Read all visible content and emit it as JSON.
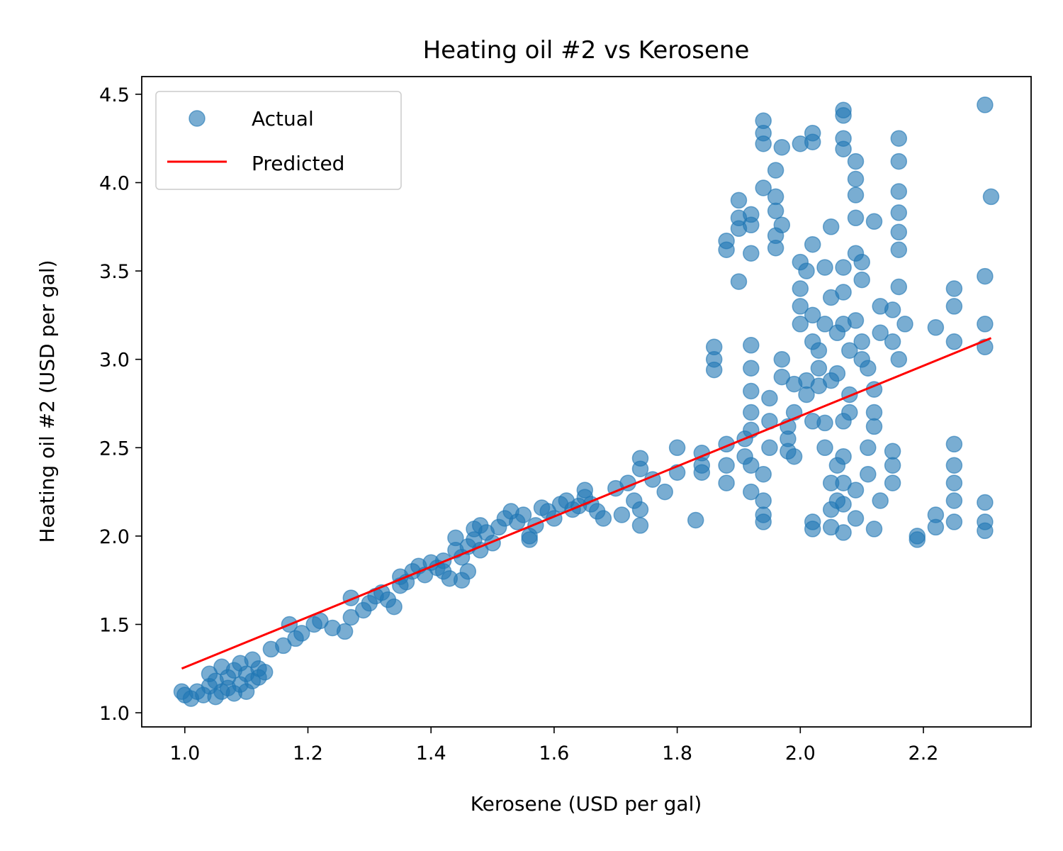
{
  "chart_data": {
    "type": "scatter",
    "title": "Heating oil #2 vs Kerosene",
    "xlabel": "Kerosene (USD per gal)",
    "ylabel": "Heating oil #2 (USD per gal)",
    "xlim": [
      0.93,
      2.375
    ],
    "ylim": [
      0.92,
      4.6
    ],
    "xticks": [
      1.0,
      1.2,
      1.4,
      1.6,
      1.8,
      2.0,
      2.2
    ],
    "xtick_labels": [
      "1.0",
      "1.2",
      "1.4",
      "1.6",
      "1.8",
      "2.0",
      "2.2"
    ],
    "yticks": [
      1.0,
      1.5,
      2.0,
      2.5,
      3.0,
      3.5,
      4.0,
      4.5
    ],
    "ytick_labels": [
      "1.0",
      "1.5",
      "2.0",
      "2.5",
      "3.0",
      "3.5",
      "4.0",
      "4.5"
    ],
    "grid": false,
    "legend_position": "top-left",
    "colors": {
      "actual": "#1f77b4",
      "predicted": "#ff0000"
    },
    "series": [
      {
        "name": "Actual",
        "kind": "scatter",
        "points": [
          [
            0.995,
            1.12
          ],
          [
            1.0,
            1.1
          ],
          [
            1.01,
            1.08
          ],
          [
            1.02,
            1.12
          ],
          [
            1.03,
            1.1
          ],
          [
            1.04,
            1.15
          ],
          [
            1.04,
            1.22
          ],
          [
            1.05,
            1.09
          ],
          [
            1.05,
            1.18
          ],
          [
            1.06,
            1.26
          ],
          [
            1.06,
            1.12
          ],
          [
            1.07,
            1.2
          ],
          [
            1.07,
            1.14
          ],
          [
            1.08,
            1.24
          ],
          [
            1.08,
            1.11
          ],
          [
            1.09,
            1.28
          ],
          [
            1.09,
            1.16
          ],
          [
            1.1,
            1.22
          ],
          [
            1.1,
            1.12
          ],
          [
            1.11,
            1.3
          ],
          [
            1.11,
            1.18
          ],
          [
            1.12,
            1.25
          ],
          [
            1.12,
            1.2
          ],
          [
            1.13,
            1.23
          ],
          [
            1.14,
            1.36
          ],
          [
            1.16,
            1.38
          ],
          [
            1.17,
            1.5
          ],
          [
            1.18,
            1.42
          ],
          [
            1.19,
            1.45
          ],
          [
            1.21,
            1.5
          ],
          [
            1.22,
            1.52
          ],
          [
            1.24,
            1.48
          ],
          [
            1.26,
            1.46
          ],
          [
            1.27,
            1.54
          ],
          [
            1.27,
            1.65
          ],
          [
            1.29,
            1.58
          ],
          [
            1.3,
            1.62
          ],
          [
            1.31,
            1.66
          ],
          [
            1.32,
            1.68
          ],
          [
            1.33,
            1.64
          ],
          [
            1.34,
            1.6
          ],
          [
            1.35,
            1.72
          ],
          [
            1.35,
            1.77
          ],
          [
            1.36,
            1.74
          ],
          [
            1.37,
            1.8
          ],
          [
            1.38,
            1.83
          ],
          [
            1.39,
            1.78
          ],
          [
            1.4,
            1.85
          ],
          [
            1.41,
            1.82
          ],
          [
            1.42,
            1.86
          ],
          [
            1.42,
            1.8
          ],
          [
            1.43,
            1.76
          ],
          [
            1.44,
            1.92
          ],
          [
            1.44,
            1.99
          ],
          [
            1.45,
            1.88
          ],
          [
            1.45,
            1.75
          ],
          [
            1.46,
            1.94
          ],
          [
            1.46,
            1.8
          ],
          [
            1.47,
            1.98
          ],
          [
            1.47,
            2.04
          ],
          [
            1.48,
            1.92
          ],
          [
            1.48,
            2.06
          ],
          [
            1.49,
            2.02
          ],
          [
            1.5,
            1.96
          ],
          [
            1.51,
            2.05
          ],
          [
            1.52,
            2.1
          ],
          [
            1.53,
            2.14
          ],
          [
            1.54,
            2.08
          ],
          [
            1.55,
            2.12
          ],
          [
            1.56,
            2.0
          ],
          [
            1.56,
            1.98
          ],
          [
            1.57,
            2.06
          ],
          [
            1.58,
            2.16
          ],
          [
            1.59,
            2.14
          ],
          [
            1.6,
            2.1
          ],
          [
            1.61,
            2.18
          ],
          [
            1.62,
            2.2
          ],
          [
            1.63,
            2.15
          ],
          [
            1.64,
            2.17
          ],
          [
            1.65,
            2.22
          ],
          [
            1.65,
            2.26
          ],
          [
            1.66,
            2.18
          ],
          [
            1.67,
            2.14
          ],
          [
            1.68,
            2.1
          ],
          [
            1.7,
            2.27
          ],
          [
            1.71,
            2.12
          ],
          [
            1.72,
            2.3
          ],
          [
            1.73,
            2.2
          ],
          [
            1.74,
            2.06
          ],
          [
            1.74,
            2.15
          ],
          [
            1.74,
            2.38
          ],
          [
            1.74,
            2.44
          ],
          [
            1.76,
            2.32
          ],
          [
            1.78,
            2.25
          ],
          [
            1.8,
            2.5
          ],
          [
            1.8,
            2.36
          ],
          [
            1.83,
            2.09
          ],
          [
            1.84,
            2.4
          ],
          [
            1.84,
            2.47
          ],
          [
            1.84,
            2.36
          ],
          [
            1.86,
            2.94
          ],
          [
            1.86,
            3.0
          ],
          [
            1.86,
            3.07
          ],
          [
            1.88,
            2.52
          ],
          [
            1.88,
            2.3
          ],
          [
            1.88,
            2.4
          ],
          [
            1.88,
            3.62
          ],
          [
            1.88,
            3.67
          ],
          [
            1.9,
            3.9
          ],
          [
            1.9,
            3.8
          ],
          [
            1.9,
            3.74
          ],
          [
            1.9,
            3.44
          ],
          [
            1.91,
            2.55
          ],
          [
            1.91,
            2.45
          ],
          [
            1.92,
            2.6
          ],
          [
            1.92,
            2.7
          ],
          [
            1.92,
            2.82
          ],
          [
            1.92,
            2.95
          ],
          [
            1.92,
            3.08
          ],
          [
            1.92,
            2.4
          ],
          [
            1.92,
            2.25
          ],
          [
            1.92,
            3.6
          ],
          [
            1.92,
            3.76
          ],
          [
            1.92,
            3.82
          ],
          [
            1.94,
            4.35
          ],
          [
            1.94,
            4.28
          ],
          [
            1.94,
            4.22
          ],
          [
            1.94,
            3.97
          ],
          [
            1.94,
            2.35
          ],
          [
            1.94,
            2.2
          ],
          [
            1.94,
            2.12
          ],
          [
            1.94,
            2.08
          ],
          [
            1.95,
            2.5
          ],
          [
            1.95,
            2.65
          ],
          [
            1.95,
            2.78
          ],
          [
            1.96,
            3.92
          ],
          [
            1.96,
            3.84
          ],
          [
            1.96,
            3.7
          ],
          [
            1.96,
            3.63
          ],
          [
            1.96,
            4.07
          ],
          [
            1.97,
            3.76
          ],
          [
            1.97,
            4.2
          ],
          [
            1.97,
            2.9
          ],
          [
            1.97,
            3.0
          ],
          [
            1.98,
            2.62
          ],
          [
            1.98,
            2.48
          ],
          [
            1.98,
            2.55
          ],
          [
            1.99,
            2.86
          ],
          [
            1.99,
            2.45
          ],
          [
            1.99,
            2.7
          ],
          [
            2.0,
            3.2
          ],
          [
            2.0,
            3.3
          ],
          [
            2.0,
            3.4
          ],
          [
            2.0,
            3.55
          ],
          [
            2.0,
            4.22
          ],
          [
            2.01,
            3.5
          ],
          [
            2.01,
            2.8
          ],
          [
            2.01,
            2.88
          ],
          [
            2.02,
            2.08
          ],
          [
            2.02,
            2.04
          ],
          [
            2.02,
            2.65
          ],
          [
            2.02,
            3.1
          ],
          [
            2.02,
            3.25
          ],
          [
            2.02,
            3.65
          ],
          [
            2.02,
            4.23
          ],
          [
            2.02,
            4.28
          ],
          [
            2.03,
            2.95
          ],
          [
            2.03,
            3.05
          ],
          [
            2.03,
            2.85
          ],
          [
            2.04,
            2.64
          ],
          [
            2.04,
            2.5
          ],
          [
            2.04,
            3.2
          ],
          [
            2.04,
            3.52
          ],
          [
            2.05,
            2.3
          ],
          [
            2.05,
            2.15
          ],
          [
            2.05,
            2.05
          ],
          [
            2.05,
            3.35
          ],
          [
            2.05,
            3.75
          ],
          [
            2.05,
            2.88
          ],
          [
            2.06,
            2.2
          ],
          [
            2.06,
            2.4
          ],
          [
            2.06,
            3.15
          ],
          [
            2.06,
            2.92
          ],
          [
            2.07,
            4.41
          ],
          [
            2.07,
            4.38
          ],
          [
            2.07,
            4.25
          ],
          [
            2.07,
            4.19
          ],
          [
            2.07,
            3.52
          ],
          [
            2.07,
            3.38
          ],
          [
            2.07,
            3.2
          ],
          [
            2.07,
            2.65
          ],
          [
            2.07,
            2.45
          ],
          [
            2.07,
            2.3
          ],
          [
            2.07,
            2.18
          ],
          [
            2.07,
            2.02
          ],
          [
            2.08,
            2.7
          ],
          [
            2.08,
            2.8
          ],
          [
            2.08,
            3.05
          ],
          [
            2.09,
            3.22
          ],
          [
            2.09,
            3.6
          ],
          [
            2.09,
            3.8
          ],
          [
            2.09,
            3.93
          ],
          [
            2.09,
            4.02
          ],
          [
            2.09,
            4.12
          ],
          [
            2.09,
            2.1
          ],
          [
            2.09,
            2.26
          ],
          [
            2.1,
            3.0
          ],
          [
            2.1,
            3.1
          ],
          [
            2.1,
            3.45
          ],
          [
            2.1,
            3.55
          ],
          [
            2.11,
            2.5
          ],
          [
            2.11,
            2.35
          ],
          [
            2.11,
            2.95
          ],
          [
            2.12,
            3.78
          ],
          [
            2.12,
            2.04
          ],
          [
            2.12,
            2.62
          ],
          [
            2.12,
            2.7
          ],
          [
            2.12,
            2.83
          ],
          [
            2.13,
            3.3
          ],
          [
            2.13,
            3.15
          ],
          [
            2.13,
            2.2
          ],
          [
            2.15,
            2.4
          ],
          [
            2.15,
            2.48
          ],
          [
            2.15,
            2.3
          ],
          [
            2.15,
            3.28
          ],
          [
            2.15,
            3.1
          ],
          [
            2.16,
            4.25
          ],
          [
            2.16,
            4.12
          ],
          [
            2.16,
            3.95
          ],
          [
            2.16,
            3.83
          ],
          [
            2.16,
            3.72
          ],
          [
            2.16,
            3.62
          ],
          [
            2.16,
            3.41
          ],
          [
            2.16,
            3.0
          ],
          [
            2.17,
            3.2
          ],
          [
            2.19,
            2.0
          ],
          [
            2.19,
            1.98
          ],
          [
            2.22,
            2.05
          ],
          [
            2.22,
            2.12
          ],
          [
            2.22,
            3.18
          ],
          [
            2.25,
            3.4
          ],
          [
            2.25,
            3.3
          ],
          [
            2.25,
            3.1
          ],
          [
            2.25,
            2.52
          ],
          [
            2.25,
            2.4
          ],
          [
            2.25,
            2.3
          ],
          [
            2.25,
            2.2
          ],
          [
            2.25,
            2.08
          ],
          [
            2.3,
            4.44
          ],
          [
            2.3,
            3.47
          ],
          [
            2.3,
            3.2
          ],
          [
            2.3,
            3.07
          ],
          [
            2.3,
            2.19
          ],
          [
            2.3,
            2.08
          ],
          [
            2.3,
            2.03
          ],
          [
            2.31,
            3.92
          ]
        ]
      },
      {
        "name": "Predicted",
        "kind": "line",
        "points": [
          [
            0.995,
            1.25
          ],
          [
            2.31,
            3.12
          ]
        ]
      }
    ]
  }
}
